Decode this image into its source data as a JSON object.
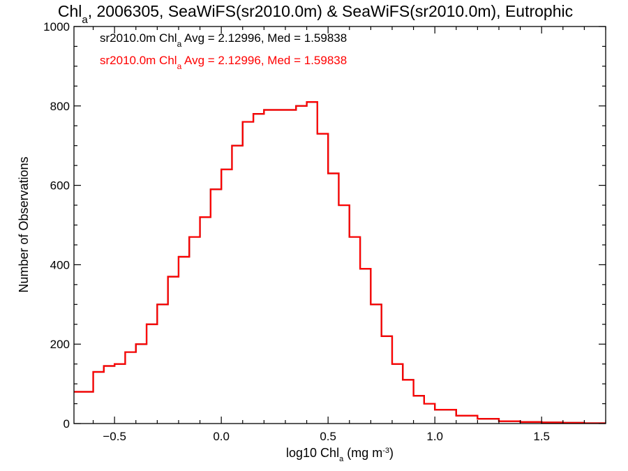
{
  "chart_data": {
    "type": "histogram",
    "title": {
      "parts": [
        {
          "text": "Chl",
          "style": "normal"
        },
        {
          "text": "a",
          "style": "sub"
        },
        {
          "text": ", 2006305, SeaWiFS(sr2010.0m) & SeaWiFS(sr2010.0m), Eutrophic",
          "style": "normal"
        }
      ]
    },
    "xlabel": {
      "parts": [
        {
          "text": "log10 Chl",
          "style": "normal"
        },
        {
          "text": "a",
          "style": "sub"
        },
        {
          "text": " (mg m",
          "style": "normal"
        },
        {
          "text": "-3",
          "style": "sup"
        },
        {
          "text": ")",
          "style": "normal"
        }
      ]
    },
    "ylabel": "Number of Observations",
    "xlim": [
      -0.69,
      1.8
    ],
    "ylim": [
      0,
      1000
    ],
    "xticks": [
      -0.5,
      0.0,
      0.5,
      1.0,
      1.5
    ],
    "xtick_labels": [
      "−0.5",
      "0.0",
      "0.5",
      "1.0",
      "1.5"
    ],
    "yticks": [
      0,
      200,
      400,
      600,
      800,
      1000
    ],
    "ytick_labels": [
      "0",
      "200",
      "400",
      "600",
      "800",
      "1000"
    ],
    "annotations": [
      {
        "color": "#000000",
        "parts": [
          {
            "text": "sr2010.0m Chl",
            "style": "normal"
          },
          {
            "text": "a",
            "style": "sub"
          },
          {
            "text": " Avg = 2.12996, Med = 1.59838",
            "style": "normal"
          }
        ]
      },
      {
        "color": "#ff0000",
        "parts": [
          {
            "text": "sr2010.0m Chl",
            "style": "normal"
          },
          {
            "text": "a",
            "style": "sub"
          },
          {
            "text": " Avg = 2.12996, Med = 1.59838",
            "style": "normal"
          }
        ]
      }
    ],
    "series": [
      {
        "color": "#000000",
        "style": "step",
        "points": [
          [
            -0.69,
            80
          ],
          [
            -0.6,
            130
          ],
          [
            -0.55,
            145
          ],
          [
            -0.5,
            150
          ],
          [
            -0.45,
            180
          ],
          [
            -0.4,
            200
          ],
          [
            -0.35,
            250
          ],
          [
            -0.3,
            300
          ],
          [
            -0.25,
            370
          ],
          [
            -0.2,
            420
          ],
          [
            -0.15,
            470
          ],
          [
            -0.1,
            520
          ],
          [
            -0.05,
            590
          ],
          [
            0.0,
            640
          ],
          [
            0.05,
            700
          ],
          [
            0.1,
            760
          ],
          [
            0.15,
            780
          ],
          [
            0.2,
            790
          ],
          [
            0.25,
            790
          ],
          [
            0.3,
            790
          ],
          [
            0.35,
            800
          ],
          [
            0.4,
            810
          ],
          [
            0.45,
            730
          ],
          [
            0.5,
            630
          ],
          [
            0.55,
            550
          ],
          [
            0.6,
            470
          ],
          [
            0.65,
            390
          ],
          [
            0.7,
            300
          ],
          [
            0.75,
            220
          ],
          [
            0.8,
            150
          ],
          [
            0.85,
            110
          ],
          [
            0.9,
            70
          ],
          [
            0.95,
            50
          ],
          [
            1.0,
            35
          ],
          [
            1.1,
            20
          ],
          [
            1.2,
            12
          ],
          [
            1.3,
            6
          ],
          [
            1.4,
            4
          ],
          [
            1.5,
            3
          ],
          [
            1.6,
            2
          ],
          [
            1.7,
            1
          ],
          [
            1.8,
            1
          ]
        ]
      },
      {
        "color": "#ff0000",
        "style": "step",
        "points": [
          [
            -0.69,
            80
          ],
          [
            -0.6,
            130
          ],
          [
            -0.55,
            145
          ],
          [
            -0.5,
            150
          ],
          [
            -0.45,
            180
          ],
          [
            -0.4,
            200
          ],
          [
            -0.35,
            250
          ],
          [
            -0.3,
            300
          ],
          [
            -0.25,
            370
          ],
          [
            -0.2,
            420
          ],
          [
            -0.15,
            470
          ],
          [
            -0.1,
            520
          ],
          [
            -0.05,
            590
          ],
          [
            0.0,
            640
          ],
          [
            0.05,
            700
          ],
          [
            0.1,
            760
          ],
          [
            0.15,
            780
          ],
          [
            0.2,
            790
          ],
          [
            0.25,
            790
          ],
          [
            0.3,
            790
          ],
          [
            0.35,
            800
          ],
          [
            0.4,
            810
          ],
          [
            0.45,
            730
          ],
          [
            0.5,
            630
          ],
          [
            0.55,
            550
          ],
          [
            0.6,
            470
          ],
          [
            0.65,
            390
          ],
          [
            0.7,
            300
          ],
          [
            0.75,
            220
          ],
          [
            0.8,
            150
          ],
          [
            0.85,
            110
          ],
          [
            0.9,
            70
          ],
          [
            0.95,
            50
          ],
          [
            1.0,
            35
          ],
          [
            1.1,
            20
          ],
          [
            1.2,
            12
          ],
          [
            1.3,
            6
          ],
          [
            1.4,
            4
          ],
          [
            1.5,
            3
          ],
          [
            1.6,
            2
          ],
          [
            1.7,
            1
          ],
          [
            1.8,
            1
          ]
        ]
      }
    ]
  }
}
